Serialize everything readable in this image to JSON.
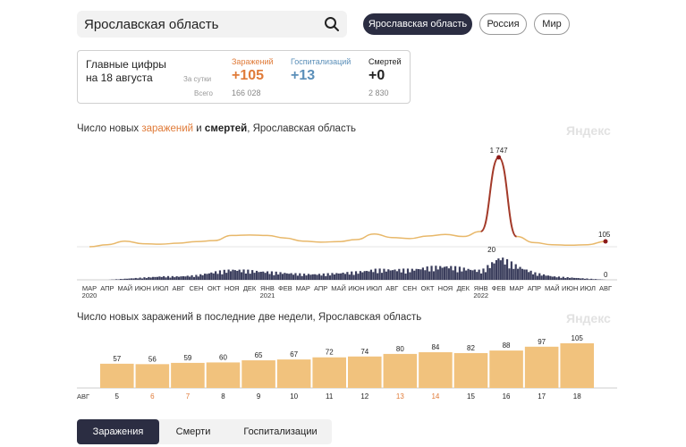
{
  "search": {
    "value": "Ярославская область"
  },
  "region_buttons": [
    {
      "label": "Ярославская область",
      "active": true
    },
    {
      "label": "Россия",
      "active": false
    },
    {
      "label": "Мир",
      "active": false
    }
  ],
  "stats": {
    "title_line1": "Главные цифры",
    "title_line2": "на 18 августа",
    "per_day_label": "За сутки",
    "total_label": "Всего",
    "columns": [
      {
        "name": "Заражений",
        "daily": "+105",
        "total": "166 028",
        "color": "#e07b39"
      },
      {
        "name": "Госпитализаций",
        "daily": "+13",
        "total": "",
        "color": "#5b8fb9"
      },
      {
        "name": "Смертей",
        "daily": "+0",
        "total": "2 830",
        "color": "#222222"
      }
    ]
  },
  "chart1": {
    "title_prefix": "Число новых ",
    "title_infections": "заражений",
    "title_and": " и ",
    "title_deaths": "смертей",
    "title_suffix": ", Ярославская область",
    "watermark": "Яндекс",
    "peak_label": "1 747",
    "last_label": "105",
    "deaths_peak_label": "20",
    "deaths_last_label": "0"
  },
  "chart2": {
    "title": "Число новых заражений в последние две недели, Ярославская область",
    "watermark": "Яндекс",
    "month_label": "АВГ"
  },
  "tabs": [
    {
      "label": "Заражения",
      "active": true
    },
    {
      "label": "Смерти",
      "active": false
    },
    {
      "label": "Госпитализации",
      "active": false
    }
  ],
  "chart_data": [
    {
      "type": "line",
      "title": "Число новых заражений и смертей, Ярославская область",
      "series": [
        {
          "name": "заражений",
          "color": "#e8b86a",
          "x": [
            "2020-03",
            "2020-04",
            "2020-05",
            "2020-06",
            "2020-07",
            "2020-08",
            "2020-09",
            "2020-10",
            "2020-11",
            "2020-12",
            "2021-01",
            "2021-02",
            "2021-03",
            "2021-04",
            "2021-05",
            "2021-06",
            "2021-07",
            "2021-08",
            "2021-09",
            "2021-10",
            "2021-11",
            "2021-12",
            "2022-01",
            "2022-02",
            "2022-03",
            "2022-04",
            "2022-05",
            "2022-06",
            "2022-07",
            "2022-08"
          ],
          "values": [
            0,
            40,
            110,
            60,
            50,
            70,
            100,
            120,
            220,
            230,
            220,
            170,
            110,
            90,
            100,
            140,
            250,
            180,
            160,
            210,
            240,
            200,
            300,
            1747,
            200,
            80,
            40,
            30,
            40,
            105
          ]
        },
        {
          "name": "смертей",
          "color": "#3a3d5c",
          "x": [
            "2020-03",
            "2020-04",
            "2020-05",
            "2020-06",
            "2020-07",
            "2020-08",
            "2020-09",
            "2020-10",
            "2020-11",
            "2020-12",
            "2021-01",
            "2021-02",
            "2021-03",
            "2021-04",
            "2021-05",
            "2021-06",
            "2021-07",
            "2021-08",
            "2021-09",
            "2021-10",
            "2021-11",
            "2021-12",
            "2022-01",
            "2022-02",
            "2022-03",
            "2022-04",
            "2022-05",
            "2022-06",
            "2022-07",
            "2022-08"
          ],
          "values": [
            0,
            0,
            1,
            2,
            3,
            3,
            4,
            7,
            9,
            8,
            7,
            6,
            5,
            5,
            6,
            7,
            9,
            9,
            9,
            11,
            12,
            10,
            8,
            20,
            12,
            6,
            3,
            2,
            1,
            0
          ]
        }
      ],
      "x_tick_labels": [
        "МАР",
        "АПР",
        "МАЙ",
        "ИЮН",
        "ИЮЛ",
        "АВГ",
        "СЕН",
        "ОКТ",
        "НОЯ",
        "ДЕК",
        "ЯНВ",
        "ФЕВ",
        "МАР",
        "АПР",
        "МАЙ",
        "ИЮН",
        "ИЮЛ",
        "АВГ",
        "СЕН",
        "ОКТ",
        "НОЯ",
        "ДЕК",
        "ЯНВ",
        "ФЕВ",
        "МАР",
        "АПР",
        "МАЙ",
        "ИЮН",
        "ИЮЛ",
        "АВГ"
      ],
      "year_labels": [
        "2020",
        "2021",
        "2022"
      ]
    },
    {
      "type": "bar",
      "title": "Число новых заражений в последние две недели, Ярославская область",
      "categories": [
        "5",
        "6",
        "7",
        "8",
        "9",
        "10",
        "11",
        "12",
        "13",
        "14",
        "15",
        "16",
        "17",
        "18"
      ],
      "weekend_categories": [
        "6",
        "7",
        "13",
        "14"
      ],
      "values": [
        57,
        56,
        59,
        60,
        65,
        67,
        72,
        74,
        80,
        84,
        82,
        88,
        97,
        105
      ],
      "bar_color": "#f1c27d",
      "weekend_color": "#e07b39"
    }
  ]
}
